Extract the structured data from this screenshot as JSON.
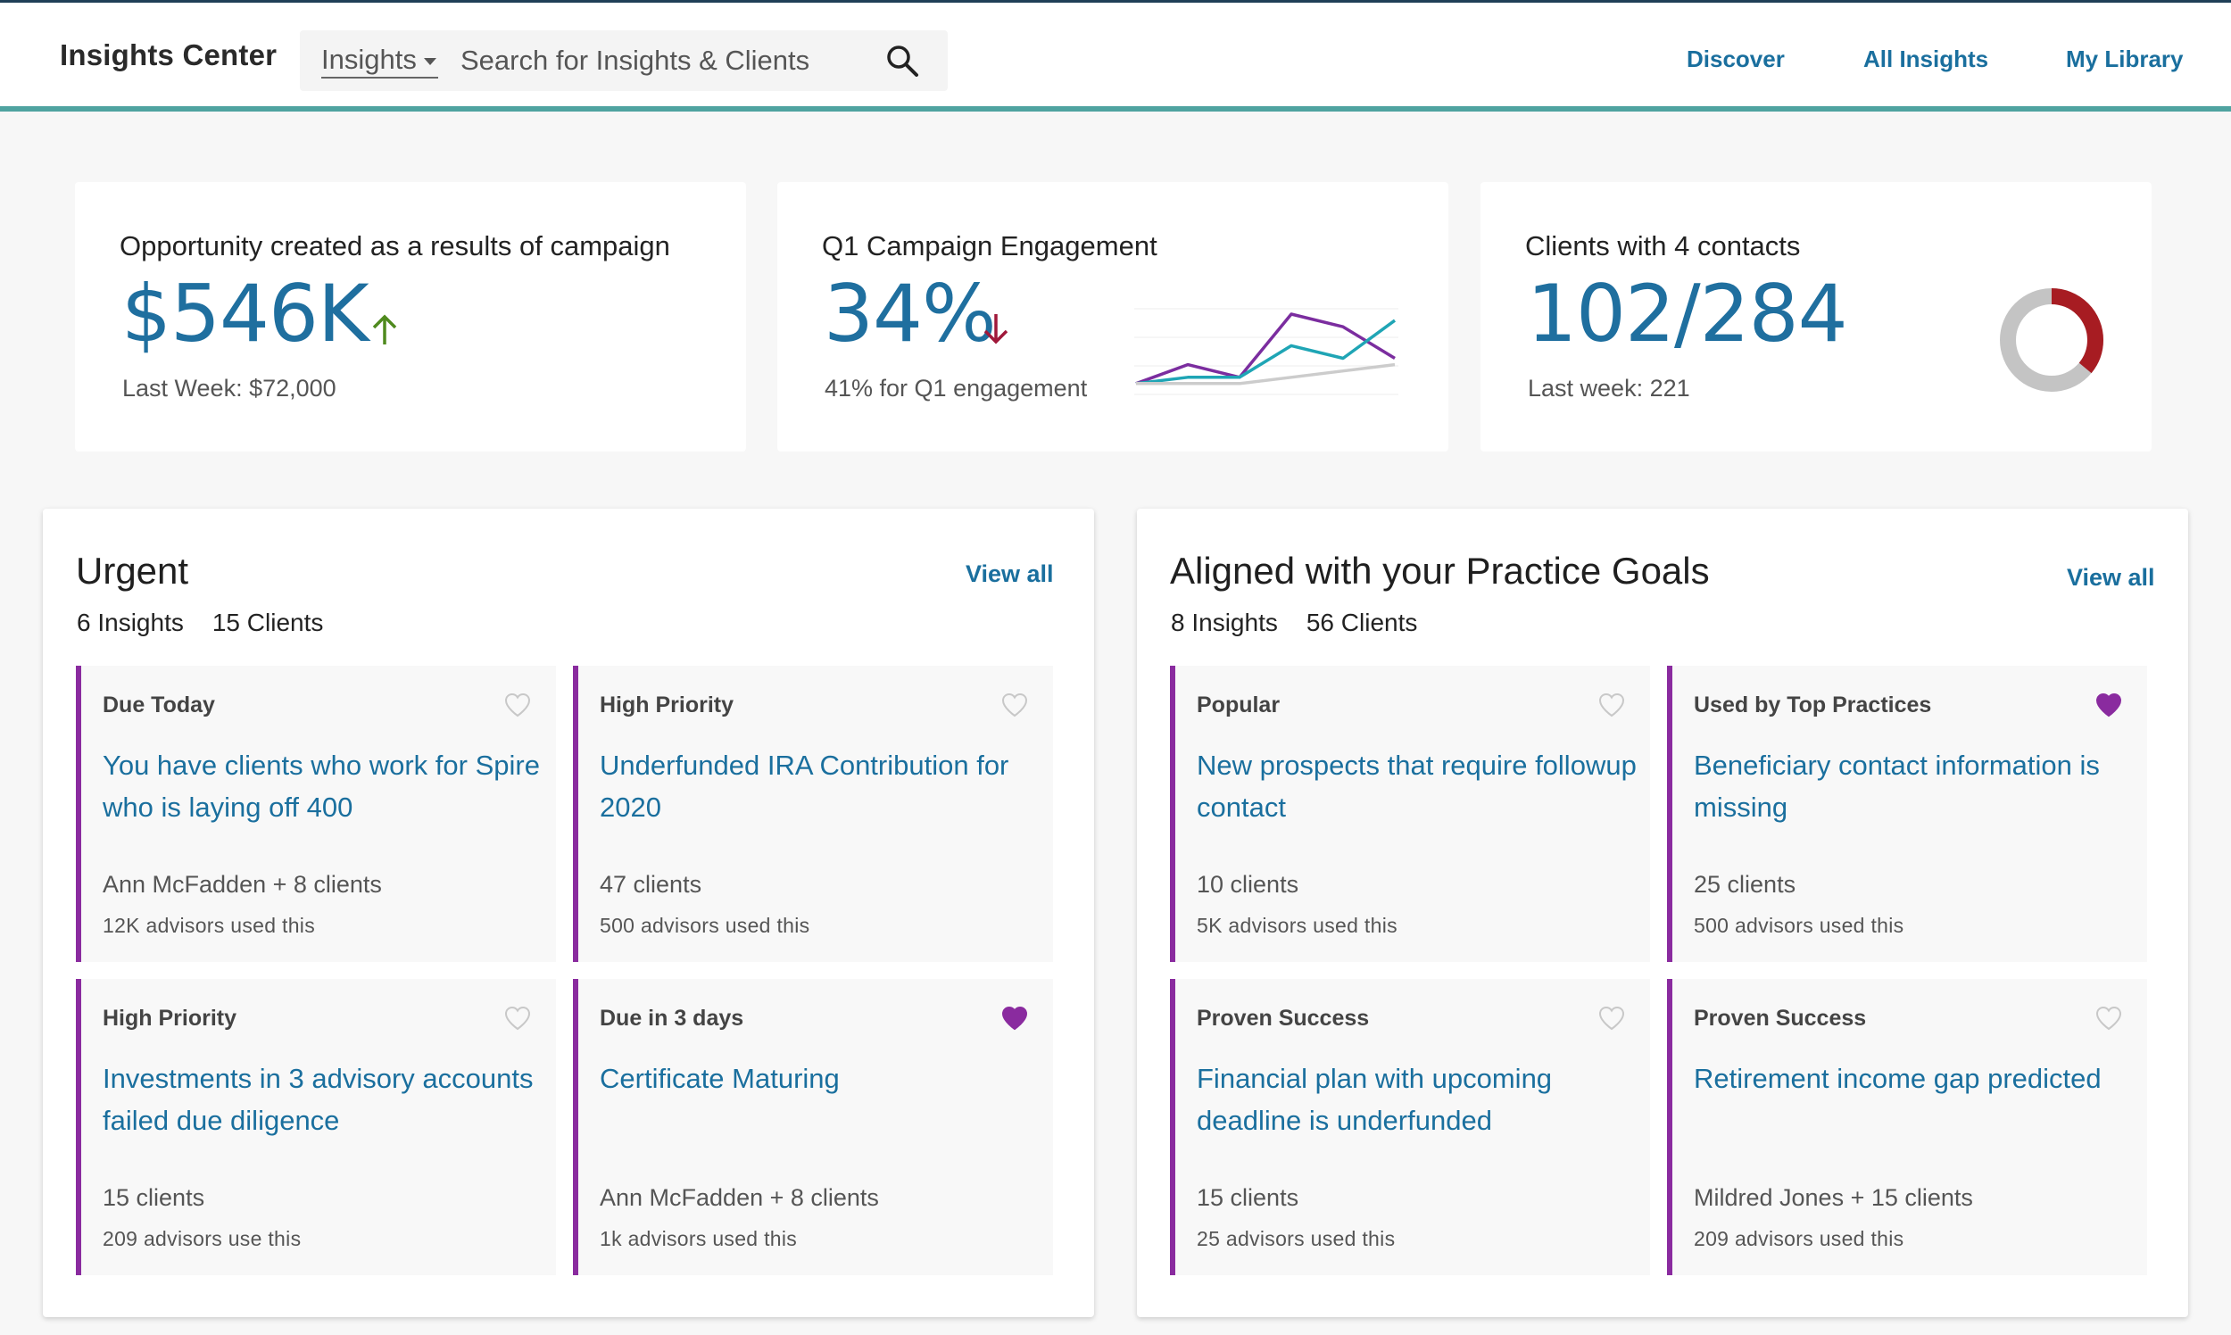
{
  "header": {
    "brand": "Insights Center",
    "search_scope": "Insights",
    "search_placeholder": "Search for Insights & Clients",
    "nav": [
      "Discover",
      "All Insights",
      "My Library"
    ]
  },
  "kpis": [
    {
      "title": "Opportunity created as a results of campaign",
      "value": "$546K",
      "trend": "up",
      "sub": "Last Week: $72,000"
    },
    {
      "title": "Q1 Campaign Engagement",
      "value": "34%",
      "trend": "down",
      "sub": "41% for Q1 engagement"
    },
    {
      "title": "Clients with 4 contacts",
      "value": "102/284",
      "sub": "Last week: 221",
      "donut_fraction": 0.36
    }
  ],
  "sparkline": {
    "series": [
      {
        "color": "#7b2d9f",
        "values": [
          2,
          5,
          3,
          13,
          11,
          6
        ]
      },
      {
        "color": "#1fa5b5",
        "values": [
          2,
          3,
          3,
          8,
          6,
          12
        ]
      },
      {
        "color": "#cccccc",
        "values": [
          2,
          2,
          2,
          3,
          4,
          5
        ]
      }
    ]
  },
  "colors": {
    "accent": "#1a6f9e",
    "card_border": "#8a2b9f",
    "trend_up": "#4f8a1e",
    "trend_down": "#a0183a",
    "donut_fill": "#a71c22",
    "donut_track": "#c4c4c4"
  },
  "panels": [
    {
      "title": "Urgent",
      "view_all": "View all",
      "insights": "6 Insights",
      "clients": "15 Clients",
      "cards": [
        {
          "tag": "Due Today",
          "title": "You have clients who work for Spire who is laying off 400",
          "meta": "Ann McFadden + 8 clients",
          "note": "12K advisors used this",
          "favorite": false
        },
        {
          "tag": "High Priority",
          "title": "Underfunded IRA Contribution for 2020",
          "meta": "47 clients",
          "note": "500 advisors used this",
          "favorite": false
        },
        {
          "tag": "High Priority",
          "title": "Investments in 3 advisory accounts failed due diligence",
          "meta": "15 clients",
          "note": "209 advisors use this",
          "favorite": false
        },
        {
          "tag": "Due in 3 days",
          "title": "Certificate Maturing",
          "meta": "Ann McFadden + 8 clients",
          "note": "1k advisors used this",
          "favorite": true
        }
      ]
    },
    {
      "title": "Aligned with your Practice Goals",
      "view_all": "View all",
      "insights": "8 Insights",
      "clients": "56 Clients",
      "cards": [
        {
          "tag": "Popular",
          "title": "New prospects that require followup contact",
          "meta": "10 clients",
          "note": "5K advisors used this",
          "favorite": false
        },
        {
          "tag": "Used by Top Practices",
          "title": "Beneficiary contact information is missing",
          "meta": "25 clients",
          "note": "500 advisors used this",
          "favorite": true
        },
        {
          "tag": "Proven Success",
          "title": "Financial plan with upcoming deadline is underfunded",
          "meta": "15 clients",
          "note": "25 advisors used this",
          "favorite": false
        },
        {
          "tag": "Proven Success",
          "title": "Retirement income gap predicted",
          "meta": "Mildred Jones + 15 clients",
          "note": "209 advisors used this",
          "favorite": false
        }
      ]
    }
  ]
}
